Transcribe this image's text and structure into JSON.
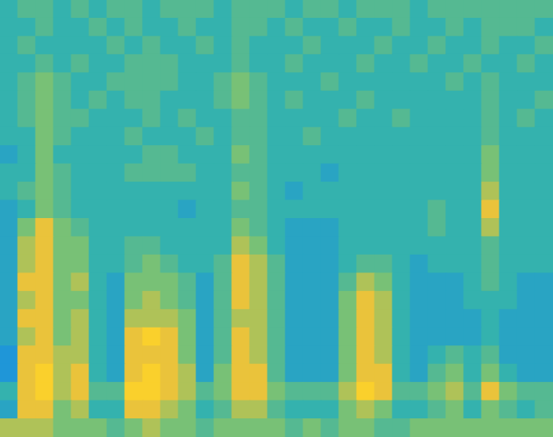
{
  "chart_data": {
    "type": "heatmap",
    "tick_labels": false,
    "cells": [
      [
        4,
        5,
        5,
        4,
        5,
        4,
        5,
        5,
        4,
        5,
        5,
        5,
        4,
        5,
        5,
        5,
        4,
        5,
        5,
        4,
        5,
        5,
        5,
        4,
        5,
        5,
        5,
        5,
        5,
        5,
        5
      ],
      [
        4,
        4,
        5,
        4,
        4,
        5,
        4,
        5,
        4,
        4,
        5,
        4,
        4,
        5,
        5,
        4,
        5,
        4,
        4,
        5,
        4,
        4,
        5,
        4,
        4,
        5,
        4,
        5,
        5,
        5,
        4
      ],
      [
        4,
        5,
        4,
        4,
        4,
        4,
        5,
        4,
        5,
        4,
        4,
        5,
        4,
        5,
        4,
        4,
        4,
        5,
        4,
        4,
        4,
        5,
        4,
        4,
        5,
        4,
        4,
        5,
        4,
        4,
        5
      ],
      [
        4,
        4,
        5,
        4,
        5,
        4,
        4,
        5,
        5,
        5,
        4,
        4,
        4,
        5,
        4,
        4,
        5,
        4,
        4,
        4,
        5,
        4,
        4,
        5,
        4,
        4,
        5,
        4,
        4,
        5,
        4
      ],
      [
        4,
        5,
        6,
        5,
        4,
        4,
        5,
        5,
        5,
        5,
        4,
        4,
        5,
        6,
        5,
        4,
        4,
        4,
        5,
        4,
        4,
        4,
        4,
        4,
        4,
        5,
        4,
        5,
        4,
        4,
        4
      ],
      [
        4,
        5,
        6,
        5,
        4,
        5,
        4,
        5,
        5,
        4,
        4,
        4,
        5,
        6,
        5,
        4,
        5,
        4,
        4,
        4,
        5,
        4,
        4,
        4,
        4,
        4,
        4,
        5,
        4,
        4,
        5
      ],
      [
        4,
        5,
        6,
        5,
        5,
        4,
        4,
        4,
        5,
        4,
        5,
        4,
        4,
        5,
        5,
        4,
        4,
        4,
        4,
        5,
        4,
        4,
        5,
        4,
        4,
        4,
        4,
        5,
        4,
        5,
        4
      ],
      [
        4,
        4,
        6,
        5,
        4,
        4,
        4,
        5,
        4,
        4,
        4,
        5,
        4,
        5,
        5,
        4,
        4,
        5,
        4,
        4,
        4,
        4,
        4,
        4,
        4,
        4,
        4,
        5,
        4,
        4,
        4
      ],
      [
        3,
        4,
        6,
        4,
        4,
        4,
        4,
        4,
        5,
        5,
        4,
        4,
        4,
        6,
        5,
        4,
        4,
        4,
        4,
        4,
        4,
        4,
        4,
        4,
        4,
        4,
        4,
        6,
        4,
        4,
        4
      ],
      [
        4,
        4,
        6,
        5,
        4,
        4,
        4,
        5,
        5,
        5,
        5,
        4,
        4,
        5,
        5,
        4,
        4,
        4,
        3,
        4,
        4,
        4,
        4,
        4,
        4,
        4,
        4,
        6,
        4,
        4,
        4
      ],
      [
        4,
        5,
        6,
        5,
        4,
        4,
        4,
        4,
        4,
        4,
        4,
        4,
        4,
        6,
        5,
        4,
        3,
        4,
        4,
        4,
        4,
        4,
        4,
        4,
        4,
        4,
        4,
        7,
        4,
        4,
        4
      ],
      [
        3,
        4,
        6,
        5,
        4,
        4,
        4,
        4,
        4,
        4,
        3,
        4,
        4,
        5,
        5,
        4,
        4,
        4,
        4,
        4,
        4,
        4,
        4,
        4,
        5,
        4,
        4,
        8,
        4,
        4,
        4
      ],
      [
        3,
        6,
        8,
        6,
        5,
        4,
        4,
        4,
        4,
        4,
        4,
        4,
        4,
        6,
        5,
        4,
        3,
        3,
        3,
        4,
        4,
        4,
        4,
        4,
        5,
        4,
        4,
        7,
        4,
        4,
        4
      ],
      [
        3,
        7,
        8,
        6,
        6,
        4,
        4,
        5,
        5,
        4,
        4,
        4,
        4,
        7,
        6,
        4,
        3,
        3,
        3,
        4,
        4,
        4,
        4,
        4,
        4,
        4,
        4,
        5,
        4,
        4,
        4
      ],
      [
        3,
        7,
        8,
        6,
        6,
        4,
        4,
        5,
        6,
        5,
        4,
        4,
        5,
        8,
        7,
        5,
        3,
        3,
        3,
        4,
        5,
        5,
        4,
        3,
        4,
        4,
        4,
        5,
        4,
        4,
        4
      ],
      [
        3,
        8,
        8,
        6,
        7,
        4,
        3,
        6,
        6,
        6,
        5,
        3,
        5,
        8,
        7,
        5,
        3,
        3,
        3,
        5,
        7,
        6,
        4,
        3,
        3,
        3,
        4,
        5,
        4,
        3,
        3
      ],
      [
        3,
        7,
        8,
        6,
        6,
        4,
        3,
        6,
        7,
        6,
        5,
        3,
        5,
        8,
        7,
        5,
        3,
        3,
        3,
        6,
        8,
        7,
        4,
        3,
        3,
        3,
        4,
        4,
        4,
        3,
        3
      ],
      [
        3,
        8,
        8,
        6,
        7,
        4,
        3,
        7,
        7,
        7,
        6,
        3,
        5,
        7,
        7,
        5,
        3,
        3,
        3,
        6,
        8,
        7,
        4,
        3,
        3,
        3,
        3,
        4,
        3,
        3,
        3
      ],
      [
        3,
        7,
        8,
        6,
        7,
        4,
        3,
        8,
        9,
        8,
        6,
        3,
        5,
        8,
        7,
        5,
        3,
        3,
        3,
        6,
        8,
        7,
        4,
        3,
        3,
        3,
        3,
        4,
        3,
        3,
        3
      ],
      [
        2,
        8,
        8,
        7,
        7,
        4,
        3,
        8,
        8,
        8,
        6,
        3,
        5,
        8,
        7,
        5,
        3,
        3,
        3,
        6,
        8,
        7,
        4,
        3,
        4,
        5,
        4,
        5,
        3,
        3,
        3
      ],
      [
        2,
        8,
        9,
        7,
        8,
        4,
        3,
        8,
        9,
        8,
        7,
        3,
        6,
        8,
        8,
        5,
        3,
        3,
        3,
        6,
        8,
        8,
        4,
        3,
        5,
        6,
        4,
        6,
        4,
        3,
        3
      ],
      [
        4,
        8,
        9,
        7,
        8,
        5,
        5,
        9,
        9,
        8,
        7,
        5,
        6,
        8,
        8,
        6,
        5,
        5,
        5,
        7,
        9,
        8,
        5,
        5,
        6,
        7,
        5,
        8,
        6,
        5,
        5
      ],
      [
        3,
        8,
        8,
        6,
        7,
        4,
        4,
        8,
        8,
        7,
        6,
        4,
        5,
        7,
        7,
        5,
        4,
        4,
        4,
        6,
        7,
        6,
        4,
        4,
        5,
        6,
        4,
        6,
        5,
        4,
        5
      ],
      [
        7,
        7,
        7,
        6,
        6,
        6,
        5,
        6,
        7,
        6,
        6,
        5,
        6,
        6,
        6,
        6,
        5,
        6,
        5,
        6,
        6,
        5,
        5,
        6,
        6,
        6,
        6,
        6,
        6,
        6,
        6
      ]
    ]
  }
}
